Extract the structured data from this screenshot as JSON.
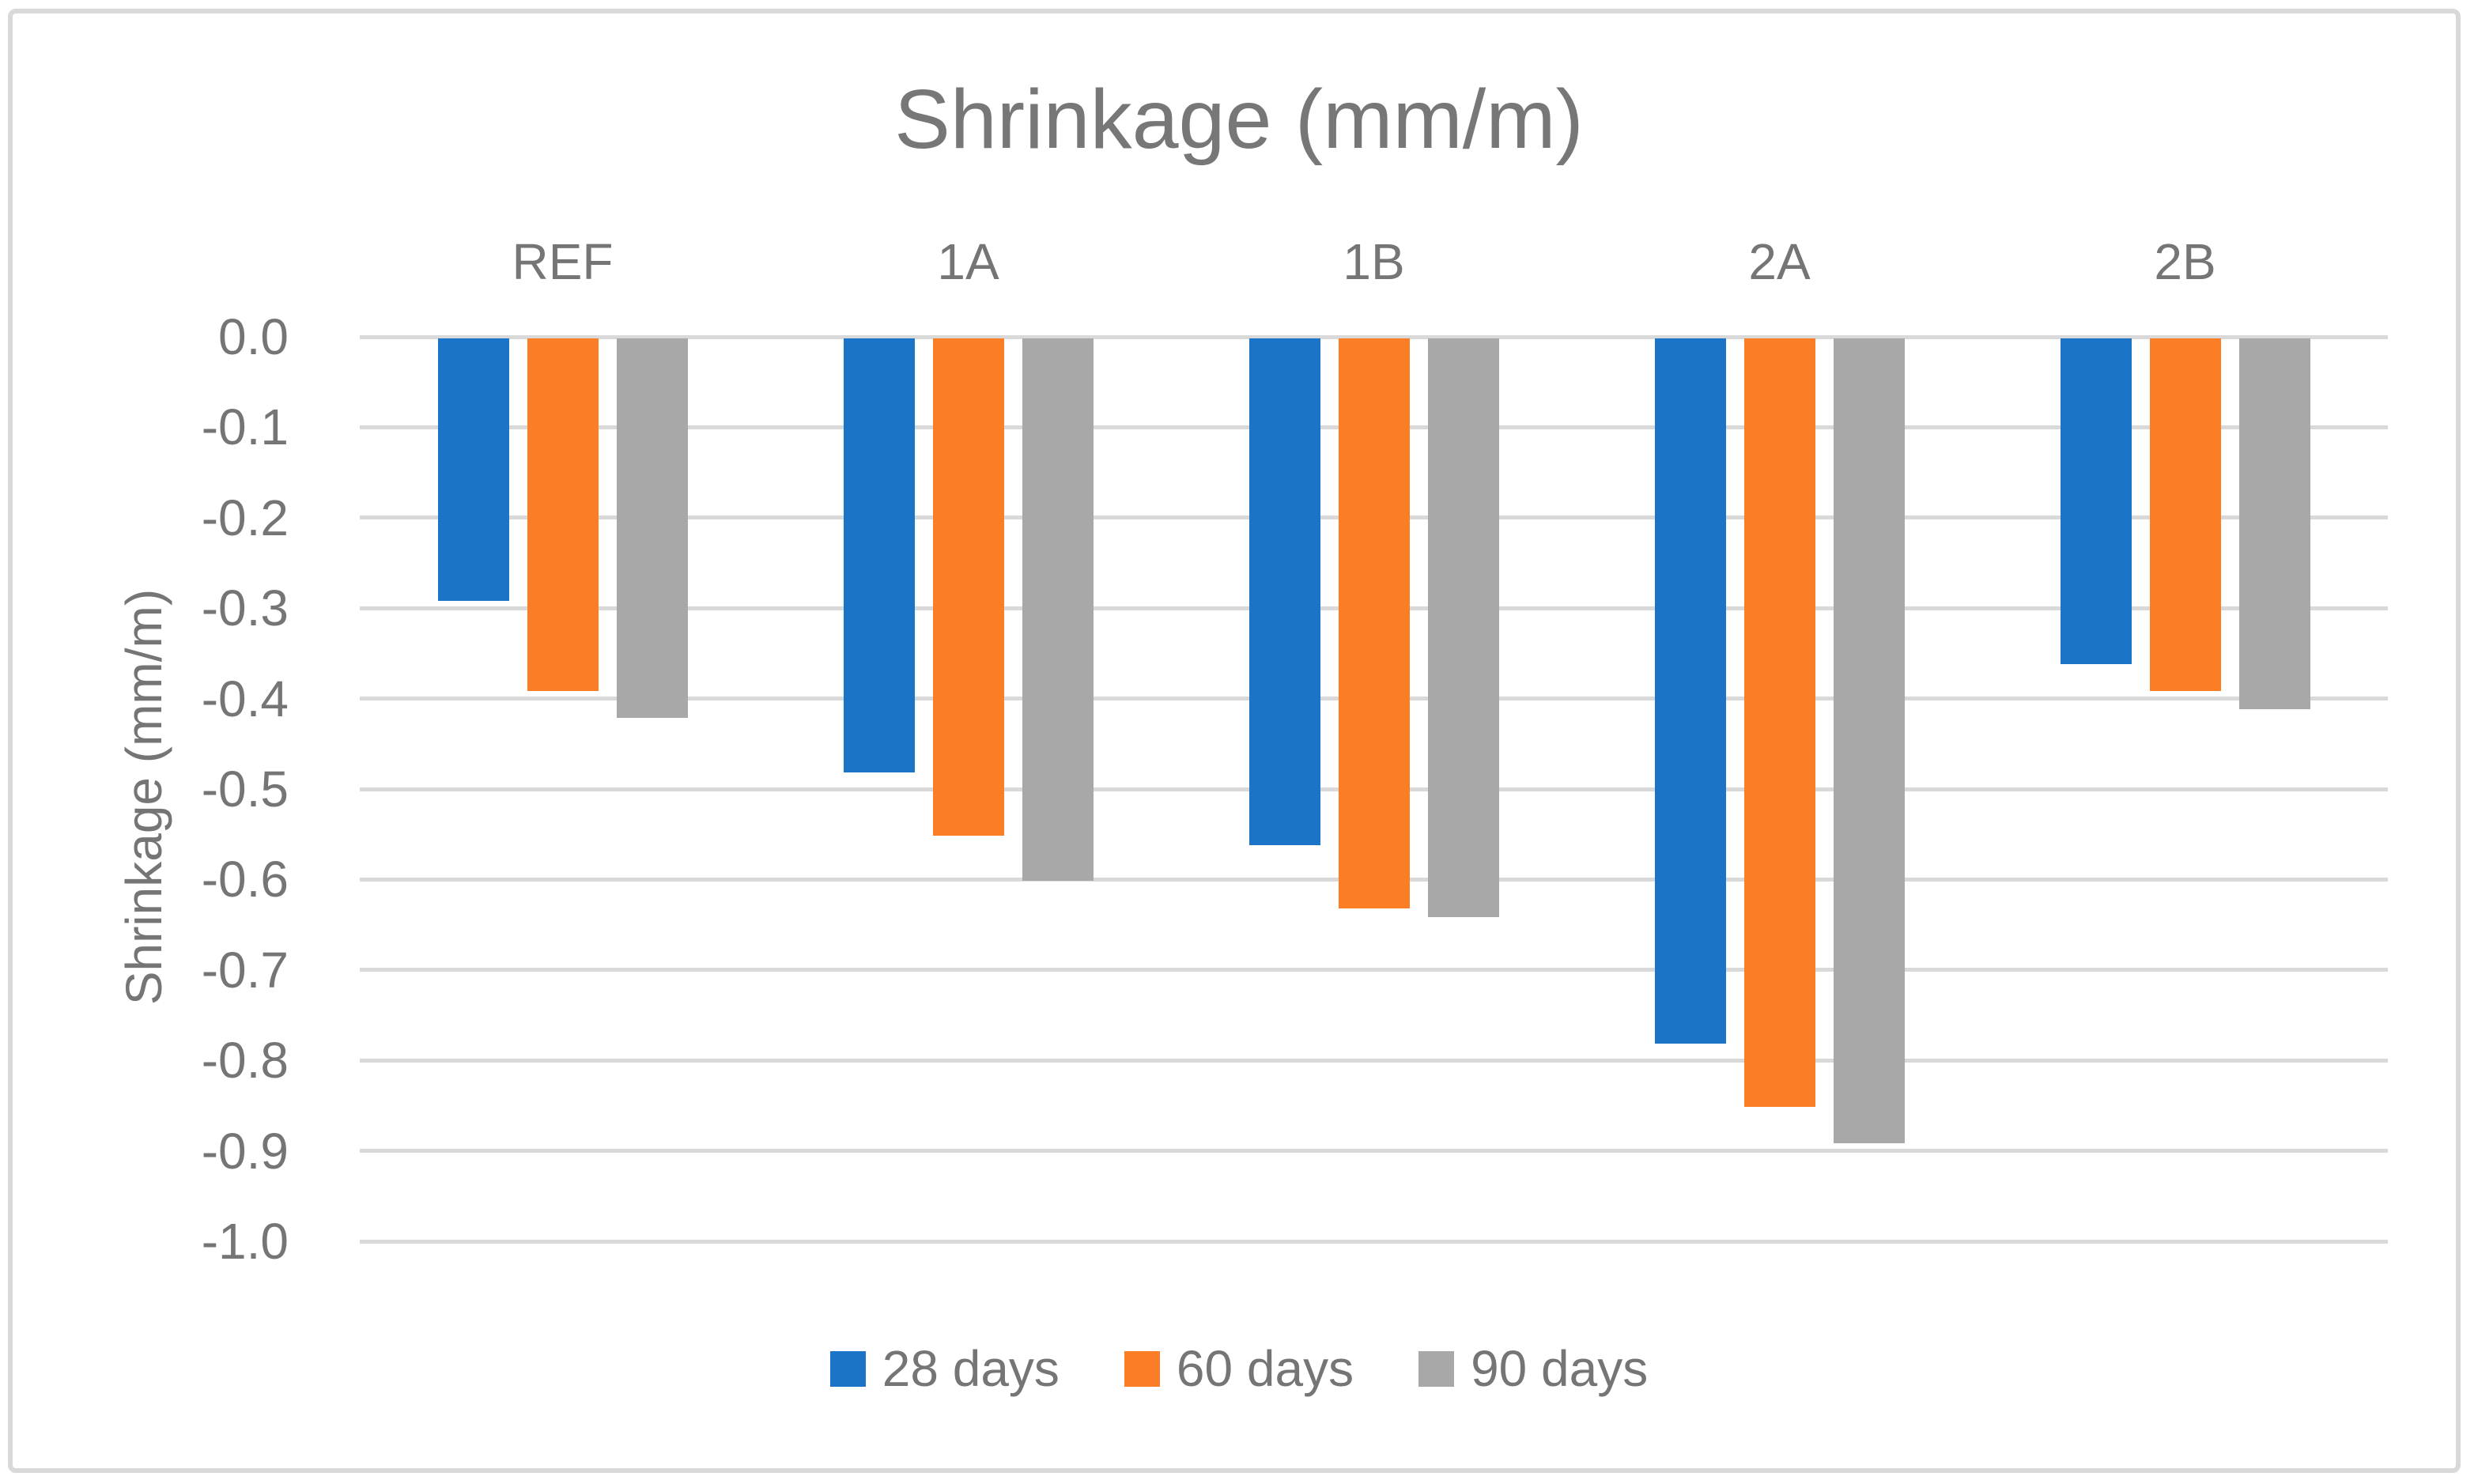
{
  "chart_data": {
    "type": "bar",
    "title": "Shrinkage (mm/m)",
    "xlabel": "",
    "ylabel": "Shrinkage (mm/m)",
    "categories": [
      "REF",
      "1A",
      "1B",
      "2A",
      "2B"
    ],
    "series": [
      {
        "name": "28 days",
        "color": "#1b74c8",
        "values": [
          -0.29,
          -0.48,
          -0.56,
          -0.78,
          -0.36
        ]
      },
      {
        "name": "60 days",
        "color": "#fb7d25",
        "values": [
          -0.39,
          -0.55,
          -0.63,
          -0.85,
          -0.39
        ]
      },
      {
        "name": "90 days",
        "color": "#a8a8a8",
        "values": [
          -0.42,
          -0.6,
          -0.64,
          -0.89,
          -0.41
        ]
      }
    ],
    "ylim": [
      -1.0,
      0.0
    ],
    "y_ticks": [
      "0.0",
      "-0.1",
      "-0.2",
      "-0.3",
      "-0.4",
      "-0.5",
      "-0.6",
      "-0.7",
      "-0.8",
      "-0.9",
      "-1.0"
    ],
    "grid": true,
    "gridline_color": "#d9d9d9",
    "text_color": "#757575",
    "legend_position": "bottom",
    "legend_labels": [
      "28 days",
      "60 days",
      "90 days"
    ],
    "bar_orientation": "vertical-negative"
  }
}
